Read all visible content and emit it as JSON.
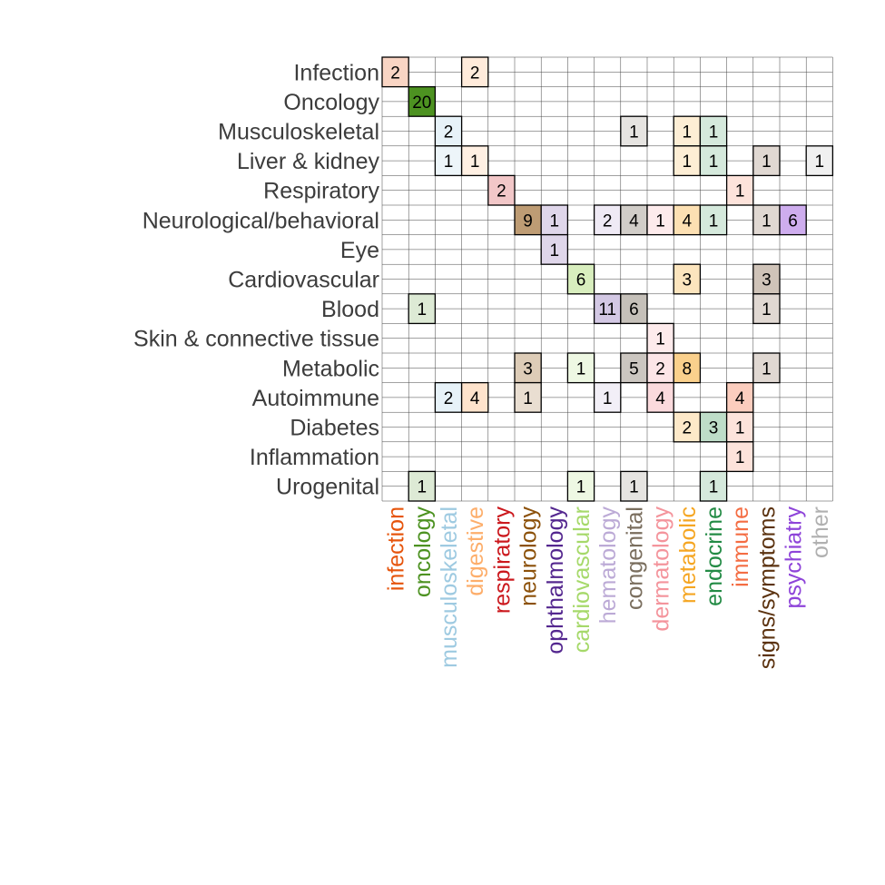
{
  "chart_data": {
    "type": "heatmap",
    "title": "",
    "xlabel": "",
    "ylabel": "",
    "rows": [
      "Infection",
      "Oncology",
      "Musculoskeletal",
      "Liver & kidney",
      "Respiratory",
      "Neurological/behavioral",
      "Eye",
      "Cardiovascular",
      "Blood",
      "Skin & connective tissue",
      "Metabolic",
      "Autoimmune",
      "Diabetes",
      "Inflammation",
      "Urogenital"
    ],
    "columns": [
      {
        "label": "infection",
        "color": "#e6550d"
      },
      {
        "label": "oncology",
        "color": "#4d9221"
      },
      {
        "label": "musculoskeletal",
        "color": "#9ecae1"
      },
      {
        "label": "digestive",
        "color": "#fdae6b"
      },
      {
        "label": "respiratory",
        "color": "#cb181d"
      },
      {
        "label": "neurology",
        "color": "#8c510a"
      },
      {
        "label": "ophthalmology",
        "color": "#54278f"
      },
      {
        "label": "cardiovascular",
        "color": "#a6d96a"
      },
      {
        "label": "hematology",
        "color": "#bcaad6"
      },
      {
        "label": "congenital",
        "color": "#7a6e5e"
      },
      {
        "label": "dermatology",
        "color": "#f4949c"
      },
      {
        "label": "metabolic",
        "color": "#f5a623"
      },
      {
        "label": "endocrine",
        "color": "#238b45"
      },
      {
        "label": "immune",
        "color": "#f46d43"
      },
      {
        "label": "signs/symptoms",
        "color": "#5c3310"
      },
      {
        "label": "psychiatry",
        "color": "#8e44d9"
      },
      {
        "label": "other",
        "color": "#b0b0b0"
      }
    ],
    "cells": [
      {
        "row": 0,
        "col": 0,
        "value": 2
      },
      {
        "row": 0,
        "col": 3,
        "value": 2
      },
      {
        "row": 1,
        "col": 1,
        "value": 20
      },
      {
        "row": 2,
        "col": 2,
        "value": 2
      },
      {
        "row": 2,
        "col": 9,
        "value": 1
      },
      {
        "row": 2,
        "col": 11,
        "value": 1
      },
      {
        "row": 2,
        "col": 12,
        "value": 1
      },
      {
        "row": 3,
        "col": 2,
        "value": 1
      },
      {
        "row": 3,
        "col": 3,
        "value": 1
      },
      {
        "row": 3,
        "col": 11,
        "value": 1
      },
      {
        "row": 3,
        "col": 12,
        "value": 1
      },
      {
        "row": 3,
        "col": 14,
        "value": 1
      },
      {
        "row": 3,
        "col": 16,
        "value": 1
      },
      {
        "row": 4,
        "col": 4,
        "value": 2
      },
      {
        "row": 4,
        "col": 13,
        "value": 1
      },
      {
        "row": 5,
        "col": 5,
        "value": 9
      },
      {
        "row": 5,
        "col": 6,
        "value": 1
      },
      {
        "row": 5,
        "col": 8,
        "value": 2
      },
      {
        "row": 5,
        "col": 9,
        "value": 4
      },
      {
        "row": 5,
        "col": 10,
        "value": 1
      },
      {
        "row": 5,
        "col": 11,
        "value": 4
      },
      {
        "row": 5,
        "col": 12,
        "value": 1
      },
      {
        "row": 5,
        "col": 14,
        "value": 1
      },
      {
        "row": 5,
        "col": 15,
        "value": 6
      },
      {
        "row": 6,
        "col": 6,
        "value": 1
      },
      {
        "row": 7,
        "col": 7,
        "value": 6
      },
      {
        "row": 7,
        "col": 11,
        "value": 3
      },
      {
        "row": 7,
        "col": 14,
        "value": 3
      },
      {
        "row": 8,
        "col": 1,
        "value": 1
      },
      {
        "row": 8,
        "col": 8,
        "value": 11
      },
      {
        "row": 8,
        "col": 9,
        "value": 6
      },
      {
        "row": 8,
        "col": 14,
        "value": 1
      },
      {
        "row": 9,
        "col": 10,
        "value": 1
      },
      {
        "row": 10,
        "col": 5,
        "value": 3
      },
      {
        "row": 10,
        "col": 7,
        "value": 1
      },
      {
        "row": 10,
        "col": 9,
        "value": 5
      },
      {
        "row": 10,
        "col": 10,
        "value": 2
      },
      {
        "row": 10,
        "col": 11,
        "value": 8
      },
      {
        "row": 10,
        "col": 14,
        "value": 1
      },
      {
        "row": 11,
        "col": 2,
        "value": 2
      },
      {
        "row": 11,
        "col": 3,
        "value": 4
      },
      {
        "row": 11,
        "col": 5,
        "value": 1
      },
      {
        "row": 11,
        "col": 8,
        "value": 1
      },
      {
        "row": 11,
        "col": 10,
        "value": 4
      },
      {
        "row": 11,
        "col": 13,
        "value": 4
      },
      {
        "row": 12,
        "col": 11,
        "value": 2
      },
      {
        "row": 12,
        "col": 12,
        "value": 3
      },
      {
        "row": 12,
        "col": 13,
        "value": 1
      },
      {
        "row": 13,
        "col": 13,
        "value": 1
      },
      {
        "row": 14,
        "col": 1,
        "value": 1
      },
      {
        "row": 14,
        "col": 7,
        "value": 1
      },
      {
        "row": 14,
        "col": 9,
        "value": 1
      },
      {
        "row": 14,
        "col": 12,
        "value": 1
      }
    ],
    "grid": true,
    "legend": "none"
  }
}
